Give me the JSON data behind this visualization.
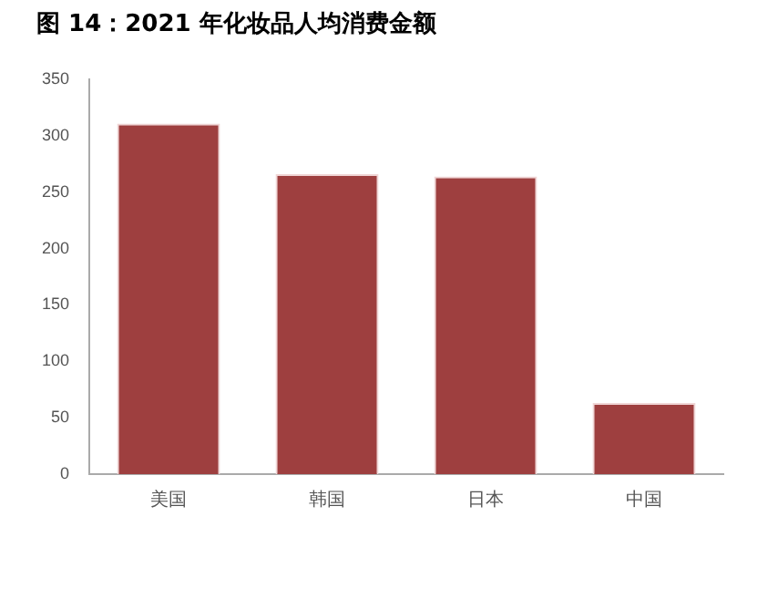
{
  "chart_data": {
    "type": "bar",
    "title": "图 14：2021 年化妆品人均消费金额",
    "categories": [
      "美国",
      "韩国",
      "日本",
      "中国"
    ],
    "values": [
      311,
      266,
      264,
      63
    ],
    "color": "#9e3f3f",
    "ylim": [
      0,
      350
    ],
    "yticks": [
      0,
      50,
      100,
      150,
      200,
      250,
      300,
      350
    ],
    "grid": false,
    "legend": false
  }
}
